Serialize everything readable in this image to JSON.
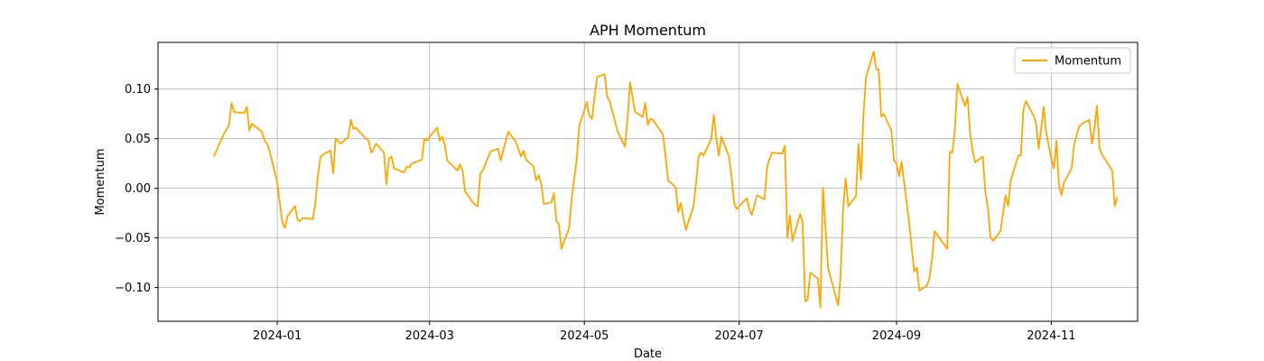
{
  "chart_data": {
    "type": "line",
    "title": "APH Momentum",
    "xlabel": "Date",
    "ylabel": "Momentum",
    "xlim": [
      "2023-11-15",
      "2024-12-05"
    ],
    "ylim": [
      -0.134,
      0.147
    ],
    "grid": true,
    "legend_position": "top-right",
    "x_ticks": [
      "2024-01-01",
      "2024-03-01",
      "2024-05-01",
      "2024-07-01",
      "2024-09-01",
      "2024-11-01"
    ],
    "x_tick_labels": [
      "2024-01",
      "2024-03",
      "2024-05",
      "2024-07",
      "2024-09",
      "2024-11"
    ],
    "y_ticks": [
      -0.1,
      -0.05,
      0.0,
      0.05,
      0.1
    ],
    "y_tick_labels": [
      "−0.10",
      "−0.05",
      "0.00",
      "0.05",
      "0.10"
    ],
    "series": [
      {
        "name": "Momentum",
        "color": "#ffa500",
        "points": [
          [
            "2023-12-07",
            0.032
          ],
          [
            "2023-12-11",
            0.055
          ],
          [
            "2023-12-13",
            0.064
          ],
          [
            "2023-12-14",
            0.086
          ],
          [
            "2023-12-15",
            0.077
          ],
          [
            "2023-12-18",
            0.076
          ],
          [
            "2023-12-19",
            0.076
          ],
          [
            "2023-12-20",
            0.082
          ],
          [
            "2023-12-21",
            0.058
          ],
          [
            "2023-12-22",
            0.065
          ],
          [
            "2023-12-26",
            0.057
          ],
          [
            "2023-12-27",
            0.048
          ],
          [
            "2023-12-28",
            0.045
          ],
          [
            "2023-12-29",
            0.037
          ],
          [
            "2024-01-01",
            0.006
          ],
          [
            "2024-01-02",
            -0.015
          ],
          [
            "2024-01-03",
            -0.034
          ],
          [
            "2024-01-04",
            -0.04
          ],
          [
            "2024-01-05",
            -0.028
          ],
          [
            "2024-01-08",
            -0.018
          ],
          [
            "2024-01-09",
            -0.032
          ],
          [
            "2024-01-10",
            -0.033
          ],
          [
            "2024-01-11",
            -0.03
          ],
          [
            "2024-01-15",
            -0.031
          ],
          [
            "2024-01-16",
            -0.015
          ],
          [
            "2024-01-17",
            0.013
          ],
          [
            "2024-01-18",
            0.031
          ],
          [
            "2024-01-19",
            0.034
          ],
          [
            "2024-01-22",
            0.038
          ],
          [
            "2024-01-23",
            0.015
          ],
          [
            "2024-01-24",
            0.05
          ],
          [
            "2024-01-26",
            0.045
          ],
          [
            "2024-01-29",
            0.052
          ],
          [
            "2024-01-30",
            0.069
          ],
          [
            "2024-01-31",
            0.06
          ],
          [
            "2024-02-01",
            0.061
          ],
          [
            "2024-02-02",
            0.058
          ],
          [
            "2024-02-05",
            0.05
          ],
          [
            "2024-02-06",
            0.048
          ],
          [
            "2024-02-07",
            0.036
          ],
          [
            "2024-02-08",
            0.04
          ],
          [
            "2024-02-09",
            0.045
          ],
          [
            "2024-02-12",
            0.036
          ],
          [
            "2024-02-13",
            0.004
          ],
          [
            "2024-02-14",
            0.03
          ],
          [
            "2024-02-15",
            0.032
          ],
          [
            "2024-02-16",
            0.02
          ],
          [
            "2024-02-20",
            0.016
          ],
          [
            "2024-02-21",
            0.022
          ],
          [
            "2024-02-22",
            0.021
          ],
          [
            "2024-02-23",
            0.025
          ],
          [
            "2024-02-27",
            0.029
          ],
          [
            "2024-02-28",
            0.05
          ],
          [
            "2024-02-29",
            0.048
          ],
          [
            "2024-03-01",
            0.052
          ],
          [
            "2024-03-04",
            0.061
          ],
          [
            "2024-03-05",
            0.048
          ],
          [
            "2024-03-06",
            0.052
          ],
          [
            "2024-03-07",
            0.044
          ],
          [
            "2024-03-08",
            0.028
          ],
          [
            "2024-03-12",
            0.018
          ],
          [
            "2024-03-13",
            0.024
          ],
          [
            "2024-03-14",
            0.018
          ],
          [
            "2024-03-15",
            -0.003
          ],
          [
            "2024-03-18",
            -0.014
          ],
          [
            "2024-03-19",
            -0.017
          ],
          [
            "2024-03-20",
            -0.018
          ],
          [
            "2024-03-21",
            0.015
          ],
          [
            "2024-03-22",
            0.018
          ],
          [
            "2024-03-25",
            0.037
          ],
          [
            "2024-03-28",
            0.04
          ],
          [
            "2024-03-29",
            0.028
          ],
          [
            "2024-04-01",
            0.057
          ],
          [
            "2024-04-04",
            0.047
          ],
          [
            "2024-04-05",
            0.04
          ],
          [
            "2024-04-06",
            0.032
          ],
          [
            "2024-04-07",
            0.038
          ],
          [
            "2024-04-08",
            0.029
          ],
          [
            "2024-04-11",
            0.022
          ],
          [
            "2024-04-12",
            0.008
          ],
          [
            "2024-04-13",
            0.013
          ],
          [
            "2024-04-14",
            0.005
          ],
          [
            "2024-04-15",
            -0.016
          ],
          [
            "2024-04-18",
            -0.014
          ],
          [
            "2024-04-19",
            -0.005
          ],
          [
            "2024-04-20",
            -0.033
          ],
          [
            "2024-04-21",
            -0.036
          ],
          [
            "2024-04-22",
            -0.061
          ],
          [
            "2024-04-25",
            -0.04
          ],
          [
            "2024-04-26",
            -0.01
          ],
          [
            "2024-04-28",
            0.03
          ],
          [
            "2024-04-29",
            0.063
          ],
          [
            "2024-05-02",
            0.087
          ],
          [
            "2024-05-03",
            0.073
          ],
          [
            "2024-05-04",
            0.07
          ],
          [
            "2024-05-05",
            0.092
          ],
          [
            "2024-05-06",
            0.112
          ],
          [
            "2024-05-09",
            0.115
          ],
          [
            "2024-05-10",
            0.092
          ],
          [
            "2024-05-11",
            0.088
          ],
          [
            "2024-05-14",
            0.058
          ],
          [
            "2024-05-17",
            0.042
          ],
          [
            "2024-05-18",
            0.069
          ],
          [
            "2024-05-19",
            0.107
          ],
          [
            "2024-05-21",
            0.077
          ],
          [
            "2024-05-24",
            0.072
          ],
          [
            "2024-05-25",
            0.086
          ],
          [
            "2024-05-26",
            0.064
          ],
          [
            "2024-05-27",
            0.07
          ],
          [
            "2024-05-28",
            0.069
          ],
          [
            "2024-05-31",
            0.058
          ],
          [
            "2024-06-01",
            0.054
          ],
          [
            "2024-06-02",
            0.032
          ],
          [
            "2024-06-03",
            0.008
          ],
          [
            "2024-06-06",
            0.001
          ],
          [
            "2024-06-07",
            -0.024
          ],
          [
            "2024-06-08",
            -0.015
          ],
          [
            "2024-06-10",
            -0.042
          ],
          [
            "2024-06-13",
            -0.018
          ],
          [
            "2024-06-14",
            0.005
          ],
          [
            "2024-06-15",
            0.032
          ],
          [
            "2024-06-16",
            0.036
          ],
          [
            "2024-06-17",
            0.033
          ],
          [
            "2024-06-20",
            0.05
          ],
          [
            "2024-06-21",
            0.074
          ],
          [
            "2024-06-22",
            0.05
          ],
          [
            "2024-06-23",
            0.033
          ],
          [
            "2024-06-24",
            0.052
          ],
          [
            "2024-06-27",
            0.032
          ],
          [
            "2024-06-28",
            0.011
          ],
          [
            "2024-06-29",
            -0.015
          ],
          [
            "2024-06-30",
            -0.021
          ],
          [
            "2024-07-04",
            -0.01
          ],
          [
            "2024-07-05",
            -0.021
          ],
          [
            "2024-07-06",
            -0.027
          ],
          [
            "2024-07-08",
            -0.007
          ],
          [
            "2024-07-11",
            -0.011
          ],
          [
            "2024-07-12",
            0.021
          ],
          [
            "2024-07-13",
            0.03
          ],
          [
            "2024-07-14",
            0.036
          ],
          [
            "2024-07-18",
            0.035
          ],
          [
            "2024-07-19",
            0.043
          ],
          [
            "2024-07-20",
            -0.05
          ],
          [
            "2024-07-21",
            -0.027
          ],
          [
            "2024-07-22",
            -0.053
          ],
          [
            "2024-07-25",
            -0.026
          ],
          [
            "2024-07-26",
            -0.034
          ],
          [
            "2024-07-27",
            -0.114
          ],
          [
            "2024-07-28",
            -0.112
          ],
          [
            "2024-07-29",
            -0.085
          ],
          [
            "2024-08-01",
            -0.091
          ],
          [
            "2024-08-02",
            -0.12
          ],
          [
            "2024-08-03",
            0.001
          ],
          [
            "2024-08-05",
            -0.08
          ],
          [
            "2024-08-09",
            -0.118
          ],
          [
            "2024-08-10",
            -0.087
          ],
          [
            "2024-08-11",
            -0.02
          ],
          [
            "2024-08-12",
            0.01
          ],
          [
            "2024-08-13",
            -0.018
          ],
          [
            "2024-08-16",
            -0.008
          ],
          [
            "2024-08-17",
            0.045
          ],
          [
            "2024-08-18",
            0.009
          ],
          [
            "2024-08-19",
            0.075
          ],
          [
            "2024-08-20",
            0.112
          ],
          [
            "2024-08-23",
            0.138
          ],
          [
            "2024-08-24",
            0.12
          ],
          [
            "2024-08-25",
            0.12
          ],
          [
            "2024-08-26",
            0.072
          ],
          [
            "2024-08-27",
            0.075
          ],
          [
            "2024-08-30",
            0.058
          ],
          [
            "2024-08-31",
            0.028
          ],
          [
            "2024-09-01",
            0.025
          ],
          [
            "2024-09-02",
            0.012
          ],
          [
            "2024-09-03",
            0.027
          ],
          [
            "2024-09-06",
            -0.035
          ],
          [
            "2024-09-07",
            -0.06
          ],
          [
            "2024-09-08",
            -0.084
          ],
          [
            "2024-09-09",
            -0.08
          ],
          [
            "2024-09-10",
            -0.103
          ],
          [
            "2024-09-13",
            -0.098
          ],
          [
            "2024-09-14",
            -0.09
          ],
          [
            "2024-09-15",
            -0.072
          ],
          [
            "2024-09-16",
            -0.043
          ],
          [
            "2024-09-21",
            -0.061
          ],
          [
            "2024-09-22",
            0.037
          ],
          [
            "2024-09-23",
            0.036
          ],
          [
            "2024-09-24",
            0.059
          ],
          [
            "2024-09-25",
            0.105
          ],
          [
            "2024-09-28",
            0.083
          ],
          [
            "2024-09-29",
            0.092
          ],
          [
            "2024-09-30",
            0.055
          ],
          [
            "2024-10-01",
            0.038
          ],
          [
            "2024-10-02",
            0.026
          ],
          [
            "2024-10-05",
            0.032
          ],
          [
            "2024-10-06",
            -0.003
          ],
          [
            "2024-10-07",
            -0.02
          ],
          [
            "2024-10-08",
            -0.049
          ],
          [
            "2024-10-09",
            -0.053
          ],
          [
            "2024-10-12",
            -0.043
          ],
          [
            "2024-10-13",
            -0.025
          ],
          [
            "2024-10-14",
            -0.007
          ],
          [
            "2024-10-15",
            -0.018
          ],
          [
            "2024-10-16",
            0.008
          ],
          [
            "2024-10-19",
            0.033
          ],
          [
            "2024-10-20",
            0.033
          ],
          [
            "2024-10-21",
            0.079
          ],
          [
            "2024-10-22",
            0.088
          ],
          [
            "2024-10-25",
            0.073
          ],
          [
            "2024-10-26",
            0.065
          ],
          [
            "2024-10-27",
            0.04
          ],
          [
            "2024-10-28",
            0.06
          ],
          [
            "2024-10-29",
            0.082
          ],
          [
            "2024-10-30",
            0.056
          ],
          [
            "2024-11-01",
            0.03
          ],
          [
            "2024-11-02",
            0.02
          ],
          [
            "2024-11-03",
            0.048
          ],
          [
            "2024-11-04",
            0.003
          ],
          [
            "2024-11-05",
            -0.007
          ],
          [
            "2024-11-06",
            0.006
          ],
          [
            "2024-11-09",
            0.02
          ],
          [
            "2024-11-10",
            0.044
          ],
          [
            "2024-11-11",
            0.054
          ],
          [
            "2024-11-12",
            0.062
          ],
          [
            "2024-11-13",
            0.065
          ],
          [
            "2024-11-16",
            0.069
          ],
          [
            "2024-11-17",
            0.045
          ],
          [
            "2024-11-18",
            0.06
          ],
          [
            "2024-11-19",
            0.083
          ],
          [
            "2024-11-20",
            0.04
          ],
          [
            "2024-11-21",
            0.034
          ],
          [
            "2024-11-25",
            0.018
          ],
          [
            "2024-11-26",
            -0.018
          ],
          [
            "2024-11-27",
            -0.009
          ]
        ]
      }
    ]
  }
}
